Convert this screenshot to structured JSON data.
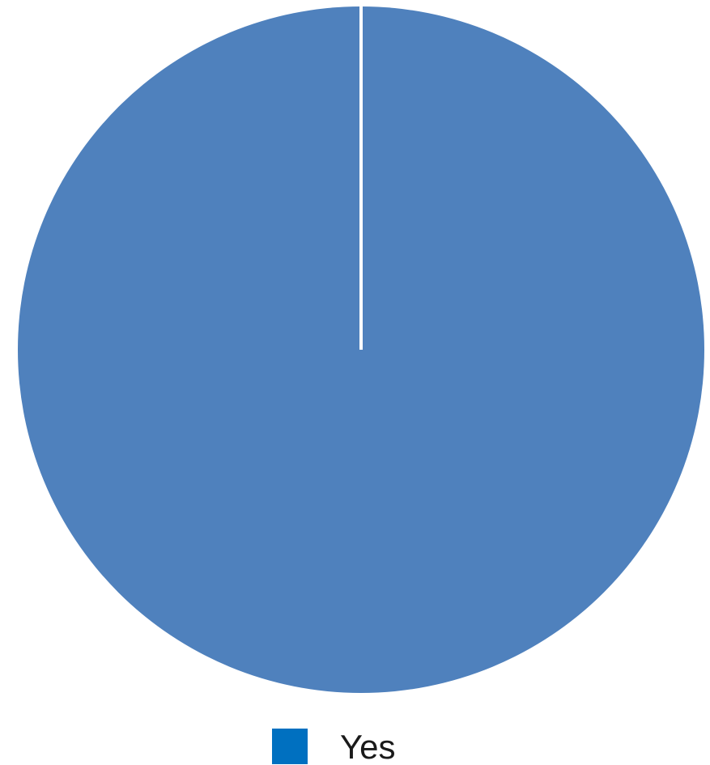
{
  "chart_data": {
    "type": "pie",
    "title": "",
    "categories": [
      "Yes"
    ],
    "values": [
      100
    ],
    "series": [
      {
        "name": "Yes",
        "values": [
          100
        ]
      }
    ],
    "legend": {
      "placement": "bottom",
      "entries": [
        "Yes"
      ]
    },
    "colors": {
      "slice": "#4f81bd",
      "legend_swatch": "#0070c0",
      "slice_border": "#ffffff"
    },
    "grid": false
  }
}
